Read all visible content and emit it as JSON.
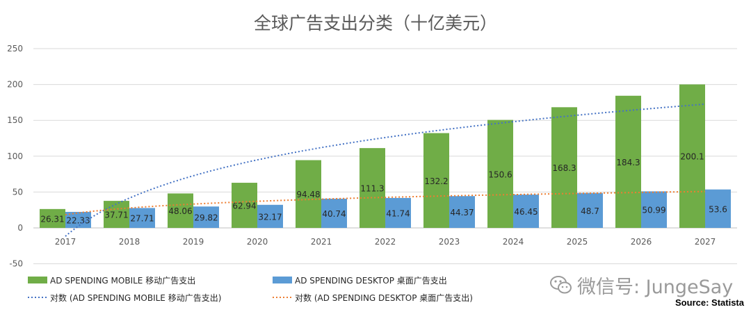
{
  "chart_data": {
    "type": "bar",
    "title": "全球广告支出分类（十亿美元）",
    "categories": [
      "2017",
      "2018",
      "2019",
      "2020",
      "2021",
      "2022",
      "2023",
      "2024",
      "2025",
      "2026",
      "2027"
    ],
    "series": [
      {
        "name": "AD SPENDING MOBILE  移动广告支出",
        "color": "#70ad47",
        "values": [
          26.31,
          37.71,
          48.06,
          62.94,
          94.48,
          111.3,
          132.2,
          150.6,
          168.3,
          184.3,
          200.1
        ],
        "labels": [
          "26.31",
          "37.71",
          "48.06",
          "62.94",
          "94.48",
          "111.3",
          "132.2",
          "150.6",
          "168.3",
          "184.3",
          "200.1"
        ]
      },
      {
        "name": "AD SPENDING DESKTOP  桌面广告支出",
        "color": "#5b9bd5",
        "values": [
          22.33,
          27.71,
          29.82,
          32.17,
          40.74,
          41.74,
          44.37,
          46.45,
          48.7,
          50.99,
          53.6
        ],
        "labels": [
          "22.33",
          "27.71",
          "29.82",
          "32.17",
          "40.74",
          "41.74",
          "44.37",
          "46.45",
          "48.7",
          "50.99",
          "53.6"
        ]
      }
    ],
    "trendlines": [
      {
        "name": "对数 (AD SPENDING MOBILE  移动广告支出)",
        "color": "#4472c4",
        "type": "logarithmic",
        "series_index": 0
      },
      {
        "name": "对数 (AD SPENDING DESKTOP  桌面广告支出)",
        "color": "#ed7d31",
        "type": "logarithmic",
        "series_index": 1
      }
    ],
    "ylim": [
      -50,
      250
    ],
    "yticks": [
      "-50",
      "0",
      "50",
      "100",
      "150",
      "200",
      "250"
    ],
    "xlabel": "",
    "ylabel": "",
    "grid": true,
    "legend_position": "bottom"
  },
  "watermark": {
    "text": "微信号: JungeSay",
    "icon": "wechat-icon",
    "color": "#9a9a9a"
  },
  "source": "Source: Statista"
}
